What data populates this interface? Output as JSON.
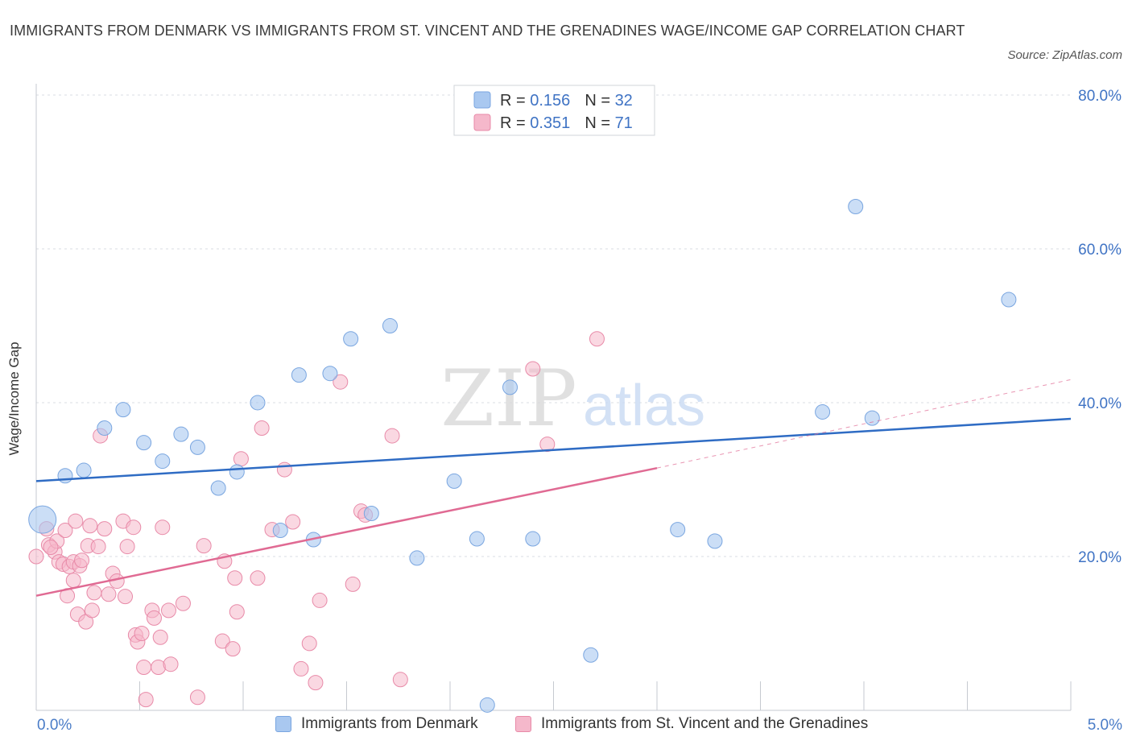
{
  "title": "IMMIGRANTS FROM DENMARK VS IMMIGRANTS FROM ST. VINCENT AND THE GRENADINES WAGE/INCOME GAP CORRELATION CHART",
  "source": "Source: ZipAtlas.com",
  "watermark": {
    "zip": "ZIP",
    "atlas": "atlas"
  },
  "legend": {
    "rows": [
      {
        "r_label": "R = ",
        "r_value": "0.156",
        "n_label": "N = ",
        "n_value": "32"
      },
      {
        "r_label": "R = ",
        "r_value": "0.351",
        "n_label": "N = ",
        "n_value": "71"
      }
    ]
  },
  "bottom_legend": [
    "Immigrants from Denmark",
    "Immigrants from St. Vincent and the Grenadines"
  ],
  "colors": {
    "blue_fill": "#a9c8f0",
    "blue_stroke": "#7aa6e0",
    "blue_line": "#2f6cc4",
    "pink_fill": "#f5b8cb",
    "pink_stroke": "#e88aa8",
    "pink_line": "#e06a93",
    "value_text": "#3f73c4",
    "grid": "#d9dde3"
  },
  "chart_data": {
    "type": "scatter",
    "xlabel": "",
    "ylabel": "Wage/Income Gap",
    "xlim": [
      0,
      5
    ],
    "ylim": [
      0,
      80
    ],
    "x_tick_labels": [
      "0.0%",
      "5.0%"
    ],
    "y_ticks": [
      20,
      40,
      60,
      80
    ],
    "y_tick_labels": [
      "20.0%",
      "40.0%",
      "60.0%",
      "80.0%"
    ],
    "grid": true,
    "legend_position": "top-center",
    "series": [
      {
        "name": "Immigrants from Denmark",
        "R": 0.156,
        "N": 32,
        "trend": {
          "x": [
            0,
            5
          ],
          "y": [
            29.8,
            37.9
          ]
        },
        "points": [
          [
            0.03,
            24.8,
            "big"
          ],
          [
            0.14,
            30.5
          ],
          [
            0.23,
            31.2
          ],
          [
            0.33,
            36.7
          ],
          [
            0.42,
            39.1
          ],
          [
            0.52,
            34.8
          ],
          [
            0.61,
            32.4
          ],
          [
            0.7,
            35.9
          ],
          [
            0.78,
            34.2
          ],
          [
            0.88,
            28.9
          ],
          [
            0.97,
            31.0
          ],
          [
            1.07,
            40.0
          ],
          [
            1.18,
            23.4
          ],
          [
            1.27,
            43.6
          ],
          [
            1.34,
            22.2
          ],
          [
            1.42,
            43.8
          ],
          [
            1.52,
            48.3
          ],
          [
            1.62,
            25.6
          ],
          [
            1.71,
            50.0
          ],
          [
            1.84,
            19.8
          ],
          [
            2.02,
            29.8
          ],
          [
            2.18,
            0.7
          ],
          [
            2.13,
            22.3
          ],
          [
            2.29,
            42.0
          ],
          [
            2.4,
            22.3
          ],
          [
            2.68,
            7.2
          ],
          [
            3.1,
            23.5
          ],
          [
            3.28,
            22.0
          ],
          [
            3.8,
            38.8
          ],
          [
            3.96,
            65.5
          ],
          [
            4.04,
            38.0
          ],
          [
            4.7,
            53.4
          ]
        ]
      },
      {
        "name": "Immigrants from St. Vincent and the Grenadines",
        "R": 0.351,
        "N": 71,
        "trend": {
          "x": [
            0,
            3.0
          ],
          "y": [
            14.9,
            31.5
          ]
        },
        "trend_dashed": {
          "x": [
            3.0,
            5.0
          ],
          "y": [
            31.5,
            43.0
          ]
        },
        "points": [
          [
            0.0,
            20.0
          ],
          [
            0.05,
            23.6
          ],
          [
            0.06,
            21.5
          ],
          [
            0.09,
            20.6
          ],
          [
            0.1,
            22.0
          ],
          [
            0.11,
            19.3
          ],
          [
            0.13,
            19.0
          ],
          [
            0.14,
            23.4
          ],
          [
            0.16,
            18.7
          ],
          [
            0.15,
            14.9
          ],
          [
            0.18,
            19.3
          ],
          [
            0.18,
            16.9
          ],
          [
            0.19,
            24.6
          ],
          [
            0.2,
            12.5
          ],
          [
            0.21,
            18.8
          ],
          [
            0.22,
            19.5
          ],
          [
            0.24,
            11.5
          ],
          [
            0.25,
            21.4
          ],
          [
            0.26,
            24.0
          ],
          [
            0.27,
            13.0
          ],
          [
            0.28,
            15.3
          ],
          [
            0.3,
            21.3
          ],
          [
            0.31,
            35.7
          ],
          [
            0.33,
            23.6
          ],
          [
            0.35,
            15.1
          ],
          [
            0.37,
            17.8
          ],
          [
            0.39,
            16.8
          ],
          [
            0.42,
            24.6
          ],
          [
            0.43,
            14.8
          ],
          [
            0.44,
            21.3
          ],
          [
            0.47,
            23.8
          ],
          [
            0.48,
            9.8
          ],
          [
            0.49,
            8.9
          ],
          [
            0.51,
            10.0
          ],
          [
            0.52,
            5.6
          ],
          [
            0.53,
            1.4
          ],
          [
            0.56,
            13.0
          ],
          [
            0.57,
            12.0
          ],
          [
            0.59,
            5.6
          ],
          [
            0.6,
            9.5
          ],
          [
            0.61,
            23.8
          ],
          [
            0.64,
            13.0
          ],
          [
            0.65,
            6.0
          ],
          [
            0.71,
            13.9
          ],
          [
            0.78,
            1.7
          ],
          [
            0.81,
            21.4
          ],
          [
            0.9,
            9.0
          ],
          [
            0.91,
            19.4
          ],
          [
            0.95,
            8.0
          ],
          [
            0.96,
            17.2
          ],
          [
            0.97,
            12.8
          ],
          [
            0.99,
            32.7
          ],
          [
            1.07,
            17.2
          ],
          [
            1.09,
            36.7
          ],
          [
            1.14,
            23.5
          ],
          [
            1.2,
            31.3
          ],
          [
            1.24,
            24.5
          ],
          [
            1.28,
            5.4
          ],
          [
            1.32,
            8.7
          ],
          [
            1.35,
            3.6
          ],
          [
            1.37,
            14.3
          ],
          [
            1.47,
            42.7
          ],
          [
            1.53,
            16.4
          ],
          [
            1.57,
            25.9
          ],
          [
            1.59,
            25.4
          ],
          [
            1.72,
            35.7
          ],
          [
            1.76,
            4.0
          ],
          [
            2.4,
            44.4
          ],
          [
            2.47,
            34.6
          ],
          [
            2.71,
            48.3
          ],
          [
            0.07,
            21.2
          ]
        ]
      }
    ]
  }
}
